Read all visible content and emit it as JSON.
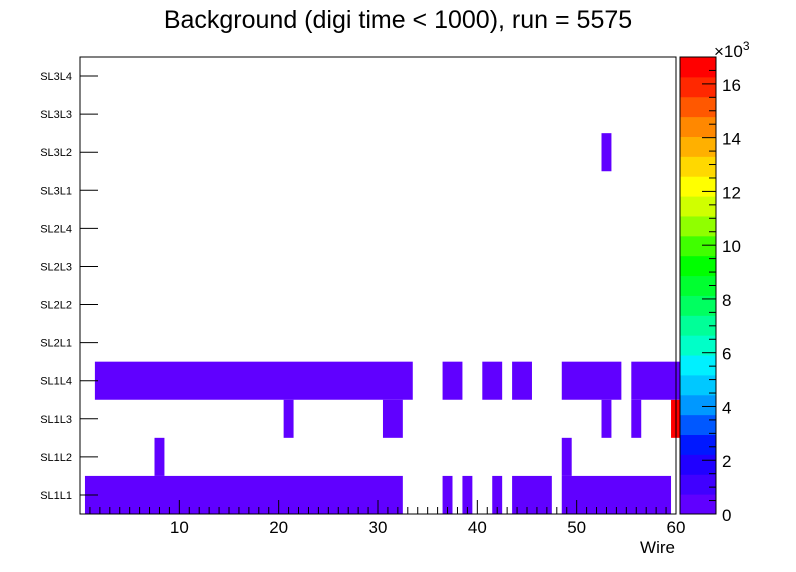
{
  "chart_data": {
    "type": "heatmap",
    "title": "Background (digi time < 1000), run = 5575",
    "xlabel": "Wire",
    "ylabel": "",
    "xlim": [
      0,
      60
    ],
    "x_ticks": [
      "10",
      "20",
      "30",
      "40",
      "50",
      "60"
    ],
    "y_categories": [
      "SL1L1",
      "SL1L2",
      "SL1L3",
      "SL1L4",
      "SL2L1",
      "SL2L2",
      "SL2L3",
      "SL2L4",
      "SL3L1",
      "SL3L2",
      "SL3L3",
      "SL3L4"
    ],
    "z_range": [
      0,
      17000
    ],
    "z_multiplier": "×10",
    "z_exponent": "3",
    "z_ticks": [
      "0",
      "2",
      "4",
      "6",
      "8",
      "10",
      "12",
      "14",
      "16"
    ],
    "palette": [
      "#6000ff",
      "#4000ff",
      "#2000ff",
      "#0018ff",
      "#0058ff",
      "#0098ff",
      "#00c8ff",
      "#00f0ff",
      "#00ffc8",
      "#00ff98",
      "#00ff60",
      "#00ff30",
      "#00ff00",
      "#40ff00",
      "#90ff00",
      "#d0ff00",
      "#ffff00",
      "#ffd800",
      "#ffb000",
      "#ff8800",
      "#ff5800",
      "#ff2800",
      "#ff0000"
    ],
    "cells": [
      {
        "row": "SL1L1",
        "from": 1,
        "to": 32,
        "value": 400
      },
      {
        "row": "SL1L1",
        "from": 37,
        "to": 37,
        "value": 400
      },
      {
        "row": "SL1L1",
        "from": 39,
        "to": 39,
        "value": 400
      },
      {
        "row": "SL1L1",
        "from": 42,
        "to": 42,
        "value": 400
      },
      {
        "row": "SL1L1",
        "from": 44,
        "to": 47,
        "value": 400
      },
      {
        "row": "SL1L1",
        "from": 49,
        "to": 59,
        "value": 400
      },
      {
        "row": "SL1L2",
        "from": 8,
        "to": 8,
        "value": 400
      },
      {
        "row": "SL1L2",
        "from": 49,
        "to": 49,
        "value": 400
      },
      {
        "row": "SL1L3",
        "from": 21,
        "to": 21,
        "value": 400
      },
      {
        "row": "SL1L3",
        "from": 31,
        "to": 32,
        "value": 400
      },
      {
        "row": "SL1L3",
        "from": 53,
        "to": 53,
        "value": 400
      },
      {
        "row": "SL1L3",
        "from": 56,
        "to": 56,
        "value": 400
      },
      {
        "row": "SL1L3",
        "from": 60,
        "to": 60,
        "value": 16800
      },
      {
        "row": "SL1L4",
        "from": 2,
        "to": 33,
        "value": 400
      },
      {
        "row": "SL1L4",
        "from": 37,
        "to": 38,
        "value": 400
      },
      {
        "row": "SL1L4",
        "from": 41,
        "to": 42,
        "value": 400
      },
      {
        "row": "SL1L4",
        "from": 44,
        "to": 45,
        "value": 400
      },
      {
        "row": "SL1L4",
        "from": 49,
        "to": 54,
        "value": 400
      },
      {
        "row": "SL1L4",
        "from": 56,
        "to": 60,
        "value": 400
      },
      {
        "row": "SL3L2",
        "from": 53,
        "to": 53,
        "value": 400
      }
    ]
  }
}
